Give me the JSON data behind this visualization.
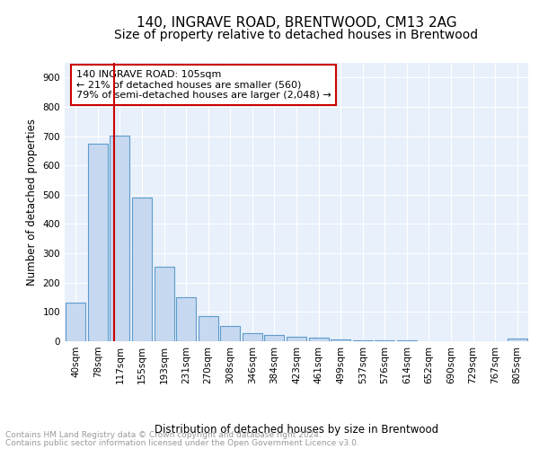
{
  "title": "140, INGRAVE ROAD, BRENTWOOD, CM13 2AG",
  "subtitle": "Size of property relative to detached houses in Brentwood",
  "xlabel": "Distribution of detached houses by size in Brentwood",
  "ylabel": "Number of detached properties",
  "footnote1": "Contains HM Land Registry data © Crown copyright and database right 2024.",
  "footnote2": "Contains public sector information licensed under the Open Government Licence v3.0.",
  "bar_labels": [
    "40sqm",
    "78sqm",
    "117sqm",
    "155sqm",
    "193sqm",
    "231sqm",
    "270sqm",
    "308sqm",
    "346sqm",
    "384sqm",
    "423sqm",
    "461sqm",
    "499sqm",
    "537sqm",
    "576sqm",
    "614sqm",
    "652sqm",
    "690sqm",
    "729sqm",
    "767sqm",
    "805sqm"
  ],
  "bar_values": [
    133,
    675,
    703,
    491,
    253,
    151,
    85,
    52,
    27,
    21,
    14,
    11,
    7,
    4,
    3,
    2,
    1,
    1,
    1,
    0,
    8
  ],
  "bar_color": "#c6d9f0",
  "bar_edge_color": "#5f9bcc",
  "vline_x": 1.72,
  "vline_color": "#cc0000",
  "annotation_text": "140 INGRAVE ROAD: 105sqm\n← 21% of detached houses are smaller (560)\n79% of semi-detached houses are larger (2,048) →",
  "annotation_box_color": "#cc0000",
  "ylim": [
    0,
    950
  ],
  "yticks": [
    0,
    100,
    200,
    300,
    400,
    500,
    600,
    700,
    800,
    900
  ],
  "bg_color": "#e8f0fb",
  "grid_color": "#ffffff",
  "title_fontsize": 11,
  "subtitle_fontsize": 10,
  "axis_label_fontsize": 8.5,
  "tick_fontsize": 7.5,
  "footnote_fontsize": 6.5
}
